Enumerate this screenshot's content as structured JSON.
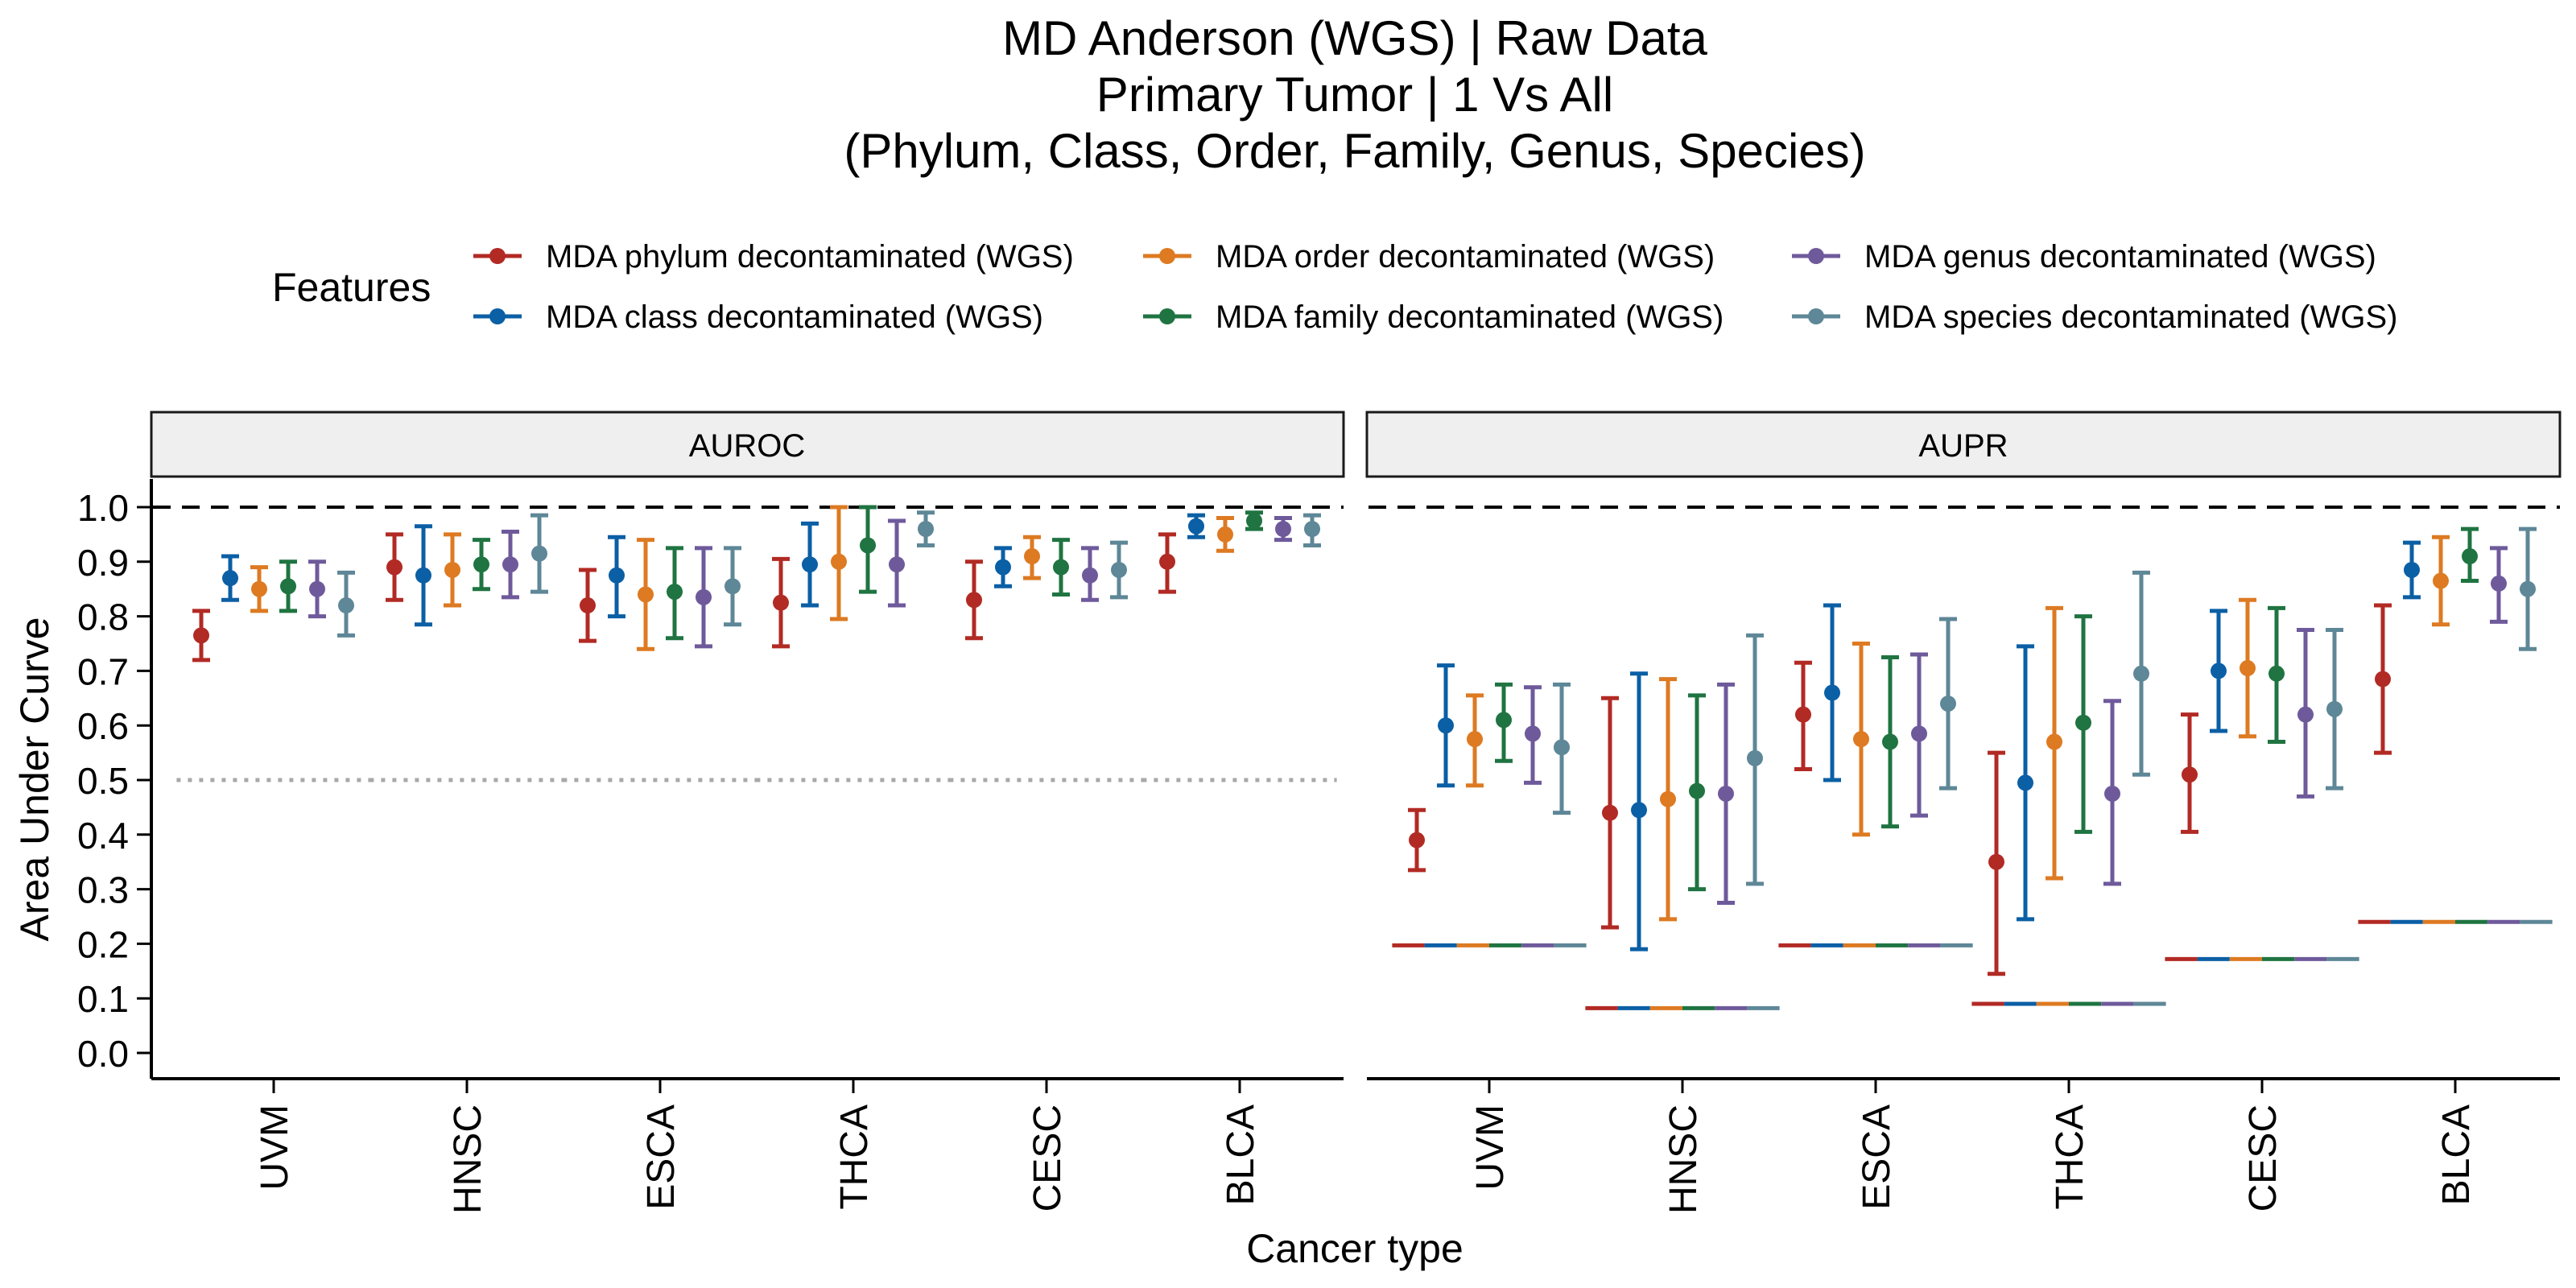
{
  "title_lines": [
    "MD Anderson (WGS) | Raw Data",
    "Primary Tumor | 1 Vs All",
    "(Phylum, Class, Order, Family, Genus, Species)"
  ],
  "legend": {
    "title": "Features",
    "placement": "top"
  },
  "colors": {
    "phylum": "#B22A24",
    "class": "#0B5FA5",
    "order": "#DD7A22",
    "family": "#1F7441",
    "genus": "#6E5A9B",
    "species": "#5E8797",
    "reference_line": "#000000",
    "chance_line": "#A8A8A8",
    "strip_fill": "#EFEFEF"
  },
  "chart_data": {
    "type": "scatter",
    "subtype": "point-with-errorbars, faceted",
    "xlabel": "Cancer type",
    "ylabel": "Area Under Curve",
    "ylim": [
      0.0,
      1.0
    ],
    "yticks": [
      "0.0",
      "0.1",
      "0.2",
      "0.3",
      "0.4",
      "0.5",
      "0.6",
      "0.7",
      "0.8",
      "0.9",
      "1.0"
    ],
    "categories": [
      "UVM",
      "HNSC",
      "ESCA",
      "THCA",
      "CESC",
      "BLCA"
    ],
    "grid": false,
    "reference_line": 1.0,
    "series": [
      {
        "key": "phylum",
        "name": "MDA phylum decontaminated (WGS)"
      },
      {
        "key": "class",
        "name": "MDA class decontaminated (WGS)"
      },
      {
        "key": "order",
        "name": "MDA order decontaminated (WGS)"
      },
      {
        "key": "family",
        "name": "MDA family decontaminated (WGS)"
      },
      {
        "key": "genus",
        "name": "MDA genus decontaminated (WGS)"
      },
      {
        "key": "species",
        "name": "MDA species decontaminated (WGS)"
      }
    ],
    "facets": [
      {
        "label": "AUROC",
        "chance_levels": [
          0.5,
          0.5,
          0.5,
          0.5,
          0.5,
          0.5
        ],
        "chance_style": "dotted",
        "values": [
          [
            [
              0.765,
              0.72,
              0.81
            ],
            [
              0.87,
              0.83,
              0.91
            ],
            [
              0.85,
              0.81,
              0.89
            ],
            [
              0.855,
              0.81,
              0.9
            ],
            [
              0.85,
              0.8,
              0.9
            ],
            [
              0.82,
              0.765,
              0.88
            ]
          ],
          [
            [
              0.89,
              0.83,
              0.95
            ],
            [
              0.875,
              0.785,
              0.965
            ],
            [
              0.885,
              0.82,
              0.95
            ],
            [
              0.895,
              0.85,
              0.94
            ],
            [
              0.895,
              0.835,
              0.955
            ],
            [
              0.915,
              0.845,
              0.985
            ]
          ],
          [
            [
              0.82,
              0.755,
              0.885
            ],
            [
              0.875,
              0.8,
              0.945
            ],
            [
              0.84,
              0.74,
              0.94
            ],
            [
              0.845,
              0.76,
              0.925
            ],
            [
              0.835,
              0.745,
              0.925
            ],
            [
              0.855,
              0.785,
              0.925
            ]
          ],
          [
            [
              0.825,
              0.745,
              0.905
            ],
            [
              0.895,
              0.82,
              0.97
            ],
            [
              0.9,
              0.795,
              1.0
            ],
            [
              0.93,
              0.845,
              1.0
            ],
            [
              0.895,
              0.82,
              0.975
            ],
            [
              0.96,
              0.93,
              0.99
            ]
          ],
          [
            [
              0.83,
              0.76,
              0.9
            ],
            [
              0.89,
              0.855,
              0.925
            ],
            [
              0.91,
              0.87,
              0.945
            ],
            [
              0.89,
              0.84,
              0.94
            ],
            [
              0.875,
              0.83,
              0.925
            ],
            [
              0.885,
              0.835,
              0.935
            ]
          ],
          [
            [
              0.9,
              0.845,
              0.95
            ],
            [
              0.965,
              0.945,
              0.985
            ],
            [
              0.95,
              0.92,
              0.98
            ],
            [
              0.975,
              0.96,
              0.99
            ],
            [
              0.96,
              0.94,
              0.98
            ],
            [
              0.96,
              0.93,
              0.985
            ]
          ]
        ]
      },
      {
        "label": "AUPR",
        "chance_levels": [
          0.197,
          0.082,
          0.197,
          0.09,
          0.172,
          0.24
        ],
        "chance_style": "solid, dashed in series colors",
        "values": [
          [
            [
              0.39,
              0.335,
              0.445
            ],
            [
              0.6,
              0.49,
              0.71
            ],
            [
              0.575,
              0.49,
              0.655
            ],
            [
              0.61,
              0.535,
              0.675
            ],
            [
              0.585,
              0.495,
              0.67
            ],
            [
              0.56,
              0.44,
              0.675
            ]
          ],
          [
            [
              0.44,
              0.23,
              0.65
            ],
            [
              0.445,
              0.19,
              0.695
            ],
            [
              0.465,
              0.245,
              0.685
            ],
            [
              0.48,
              0.3,
              0.655
            ],
            [
              0.475,
              0.275,
              0.675
            ],
            [
              0.54,
              0.31,
              0.765
            ]
          ],
          [
            [
              0.62,
              0.52,
              0.715
            ],
            [
              0.66,
              0.5,
              0.82
            ],
            [
              0.575,
              0.4,
              0.75
            ],
            [
              0.57,
              0.415,
              0.725
            ],
            [
              0.585,
              0.435,
              0.73
            ],
            [
              0.64,
              0.485,
              0.795
            ]
          ],
          [
            [
              0.35,
              0.145,
              0.55
            ],
            [
              0.495,
              0.245,
              0.745
            ],
            [
              0.57,
              0.32,
              0.815
            ],
            [
              0.605,
              0.405,
              0.8
            ],
            [
              0.475,
              0.31,
              0.645
            ],
            [
              0.695,
              0.51,
              0.88
            ]
          ],
          [
            [
              0.51,
              0.405,
              0.62
            ],
            [
              0.7,
              0.59,
              0.81
            ],
            [
              0.705,
              0.58,
              0.83
            ],
            [
              0.695,
              0.57,
              0.815
            ],
            [
              0.62,
              0.47,
              0.775
            ],
            [
              0.63,
              0.485,
              0.775
            ]
          ],
          [
            [
              0.685,
              0.55,
              0.82
            ],
            [
              0.885,
              0.835,
              0.935
            ],
            [
              0.865,
              0.785,
              0.945
            ],
            [
              0.91,
              0.865,
              0.96
            ],
            [
              0.86,
              0.79,
              0.925
            ],
            [
              0.85,
              0.74,
              0.96
            ]
          ]
        ]
      }
    ]
  }
}
